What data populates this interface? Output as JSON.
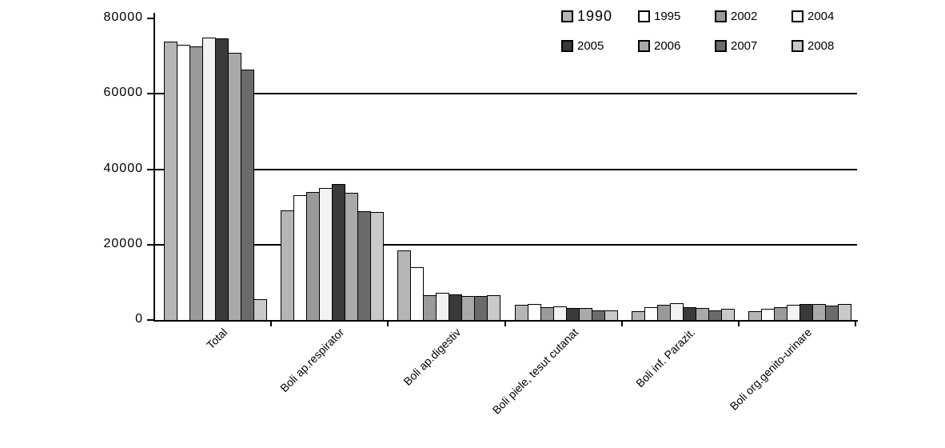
{
  "chart_data": {
    "type": "bar",
    "title": "",
    "xlabel": "",
    "ylabel": "",
    "categories": [
      "Total",
      "Boli ap.respirator",
      "Boli ap.digestiv",
      "Boli piele, tesut cutanat",
      "Boli inf. Parazit.",
      "Boli org.genito-urinare"
    ],
    "series": [
      {
        "name": "1990",
        "color": "#b5b5b5",
        "values": [
          73800,
          29000,
          18400,
          4000,
          2400,
          2400
        ]
      },
      {
        "name": "1995",
        "color": "#ffffff",
        "values": [
          73000,
          33000,
          14100,
          4300,
          3500,
          2900
        ]
      },
      {
        "name": "2002",
        "color": "#9a9a9a",
        "values": [
          72500,
          34000,
          6600,
          3500,
          4000,
          3400
        ]
      },
      {
        "name": "2004",
        "color": "#f2f2f2",
        "values": [
          74900,
          35000,
          7300,
          3700,
          4500,
          4100
        ]
      },
      {
        "name": "2005",
        "color": "#3a3a3a",
        "values": [
          74800,
          36000,
          6800,
          3200,
          3400,
          4300
        ]
      },
      {
        "name": "2006",
        "color": "#a9a9a9",
        "values": [
          70900,
          33700,
          6300,
          3200,
          3100,
          4300
        ]
      },
      {
        "name": "2007",
        "color": "#6b6b6b",
        "values": [
          66500,
          28800,
          6300,
          2500,
          2600,
          3900
        ]
      },
      {
        "name": "2008",
        "color": "#c9c9c9",
        "values": [
          5500,
          28700,
          6600,
          2600,
          2900,
          4300
        ]
      }
    ],
    "ylim": [
      0,
      80000
    ],
    "ytick_step": 20000,
    "ytick_labels": [
      "0",
      "20000",
      "40000",
      "60000",
      "80000"
    ],
    "grid": "horizontal",
    "gridline_values": [
      20000,
      40000,
      60000
    ],
    "legend_position": "top-right",
    "legend_rows": 2,
    "legend_columns": 4
  },
  "colors": {
    "axis": "#000000",
    "background": "#ffffff"
  }
}
